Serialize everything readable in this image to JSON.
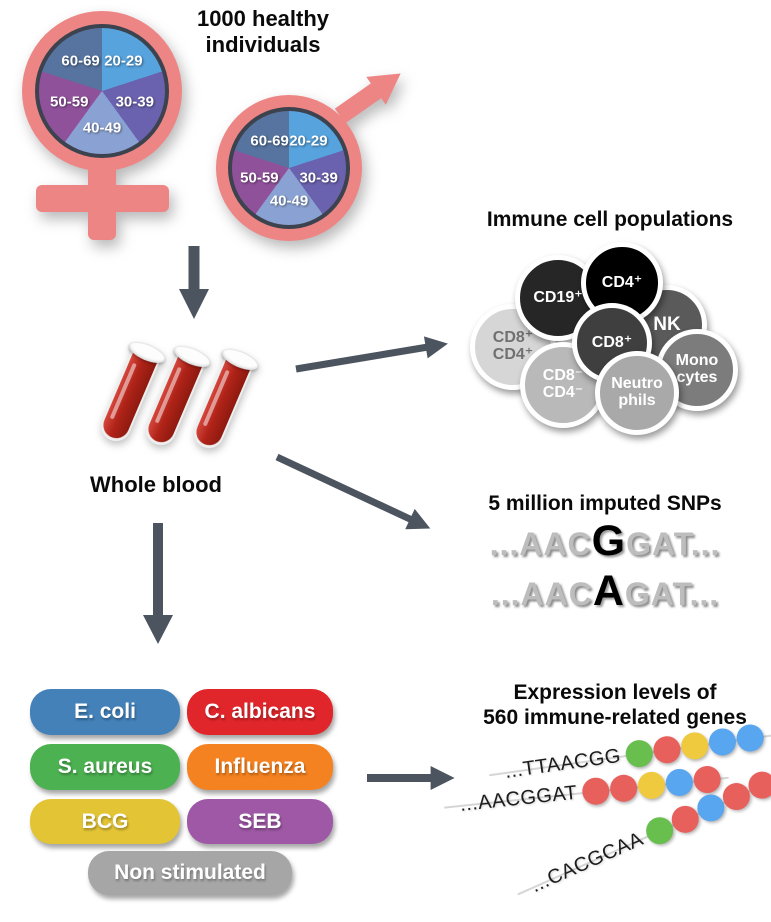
{
  "header": {
    "line1": "1000 healthy",
    "line2": "individuals"
  },
  "ages": [
    "20-29",
    "30-39",
    "40-49",
    "50-59",
    "60-69"
  ],
  "whole_blood": {
    "label": "Whole blood"
  },
  "immune": {
    "title": "Immune cell populations",
    "cells": [
      {
        "label": "CD8⁺\nCD4⁺",
        "color": "#d6d6d6"
      },
      {
        "label": "CD19⁺",
        "color": "#262626"
      },
      {
        "label": "CD4⁺",
        "color": "#000000"
      },
      {
        "label": "NK",
        "color": "#5a5a5a"
      },
      {
        "label": "CD8⁺",
        "color": "#3f3f3f"
      },
      {
        "label": "CD8⁻\nCD4⁻",
        "color": "#b9b9b9"
      },
      {
        "label": "Neutro\nphils",
        "color": "#a9a9a9"
      },
      {
        "label": "Mono\ncytes",
        "color": "#7c7c7c"
      }
    ]
  },
  "snps": {
    "title": "5 million imputed SNPs",
    "seq1": {
      "prefix": "...AAC",
      "variant": "G",
      "suffix": "GAT..."
    },
    "seq2": {
      "prefix": "...AAC",
      "variant": "A",
      "suffix": "GAT..."
    }
  },
  "stimuli": [
    {
      "label": "E. coli",
      "color": "#4381b8"
    },
    {
      "label": "C. albicans",
      "color": "#e0262b"
    },
    {
      "label": "S. aureus",
      "color": "#4cb151"
    },
    {
      "label": "Influenza",
      "color": "#f58220"
    },
    {
      "label": "BCG",
      "color": "#e2c434"
    },
    {
      "label": "SEB",
      "color": "#9e58a5"
    },
    {
      "label": "Non stimulated",
      "color": "#a6a6a6"
    }
  ],
  "expression": {
    "title1": "Expression levels of",
    "title2": "560 immune-related genes",
    "rows": [
      {
        "sequence": "...TTAACGG",
        "dots": [
          "green",
          "red",
          "yellow",
          "blue",
          "blue"
        ]
      },
      {
        "sequence": "...AACGGAT",
        "dots": [
          "red",
          "red",
          "yellow",
          "blue",
          "red"
        ]
      },
      {
        "sequence": "...CACGCAA",
        "dots": [
          "green",
          "red",
          "blue",
          "red",
          "red"
        ]
      }
    ]
  },
  "colors": {
    "symbol_pink": "#ee8585",
    "arrow_gray": "#4b545f",
    "pie_20_29": "#57a3de",
    "pie_30_39": "#6a62ae",
    "pie_40_49": "#8aa2d3",
    "pie_50_59": "#90519b",
    "pie_60_69": "#56749f",
    "blood_red": "#b02318",
    "dot_green": "#68bf4e",
    "dot_red": "#e8605c",
    "dot_yellow": "#f0ca3e",
    "dot_blue": "#58a6ef"
  }
}
